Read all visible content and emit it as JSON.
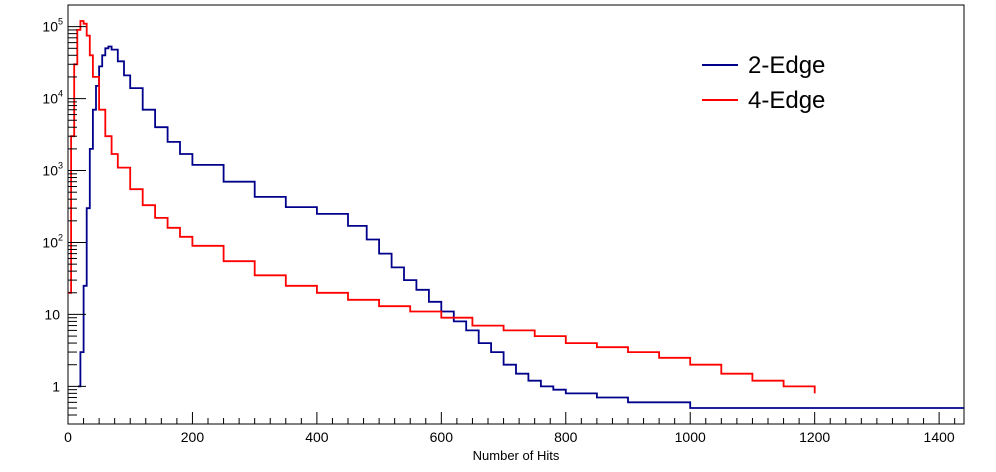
{
  "chart_data": {
    "type": "line",
    "title": "",
    "xlabel": "Number of Hits",
    "ylabel": "",
    "xlim": [
      0,
      1440
    ],
    "ylim": [
      0.3,
      200000
    ],
    "yscale": "log",
    "x_ticks": [
      "0",
      "200",
      "400",
      "600",
      "800",
      "1000",
      "1200",
      "1400"
    ],
    "y_ticks": [
      {
        "value": 1,
        "base": "1",
        "exp": ""
      },
      {
        "value": 10,
        "base": "10",
        "exp": ""
      },
      {
        "value": 100,
        "base": "10",
        "exp": "2"
      },
      {
        "value": 1000,
        "base": "10",
        "exp": "3"
      },
      {
        "value": 10000,
        "base": "10",
        "exp": "4"
      },
      {
        "value": 100000,
        "base": "10",
        "exp": "5"
      }
    ],
    "legend_position": "top-right",
    "grid": false,
    "series": [
      {
        "name": "2-Edge",
        "color": "#00008b",
        "x": [
          16,
          20,
          25,
          30,
          35,
          40,
          45,
          50,
          55,
          60,
          65,
          70,
          80,
          90,
          100,
          120,
          140,
          160,
          180,
          200,
          250,
          300,
          350,
          400,
          450,
          480,
          500,
          520,
          540,
          560,
          580,
          600,
          620,
          640,
          660,
          680,
          700,
          720,
          740,
          760,
          780,
          800,
          850,
          900,
          950,
          1000,
          1100,
          1200,
          1250,
          1300,
          1330,
          1440
        ],
        "values": [
          1,
          3,
          25,
          300,
          2000,
          7000,
          15000,
          28000,
          40000,
          50000,
          53000,
          48000,
          33000,
          21000,
          14000,
          7000,
          4000,
          2500,
          1700,
          1200,
          700,
          430,
          310,
          250,
          170,
          110,
          70,
          45,
          30,
          22,
          15,
          11,
          8,
          6,
          4,
          3,
          2,
          1.5,
          1.2,
          1,
          0.9,
          0.8,
          0.7,
          0.6,
          0.6,
          0.5,
          0.5,
          0.5,
          0.5,
          0.5,
          0.5,
          0.5
        ]
      },
      {
        "name": "4-Edge",
        "color": "#ff0000",
        "x": [
          0,
          5,
          10,
          15,
          20,
          25,
          30,
          35,
          40,
          50,
          60,
          70,
          80,
          100,
          120,
          140,
          160,
          180,
          200,
          250,
          300,
          350,
          400,
          450,
          500,
          550,
          600,
          650,
          700,
          750,
          800,
          850,
          900,
          950,
          1000,
          1050,
          1100,
          1150,
          1200
        ],
        "values": [
          20,
          3000,
          30000,
          90000,
          120000,
          110000,
          75000,
          40000,
          20000,
          7000,
          3000,
          1700,
          1100,
          550,
          330,
          220,
          160,
          120,
          90,
          55,
          35,
          25,
          20,
          16,
          13,
          11,
          9,
          7,
          6,
          5,
          4,
          3.5,
          3,
          2.5,
          2,
          1.5,
          1.2,
          1,
          0.8
        ]
      }
    ]
  }
}
